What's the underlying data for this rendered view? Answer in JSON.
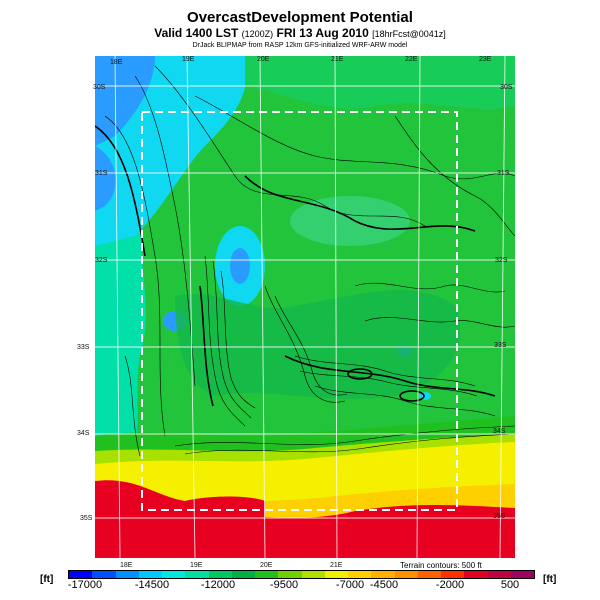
{
  "title": "OvercastDevelopment Potential",
  "subtitle_main": "Valid 1400 LST",
  "subtitle_small": "(1200Z)",
  "subtitle_date": "FRI 13 Aug 2010",
  "subtitle_fcst": "[18hrFcst@0041z]",
  "source_line": "DrJack BLIPMAP from RASP 12km GFS-initialized WRF-ARW model",
  "lon_labels_top": [
    "18E",
    "19E",
    "20E",
    "21E",
    "22E",
    "23E"
  ],
  "lon_labels_bottom": [
    "18E",
    "19E",
    "20E",
    "21E"
  ],
  "lat_labels_left": [
    "30S",
    "31S",
    "32S",
    "33S",
    "34S",
    "35S"
  ],
  "lat_labels_right": [
    "30S",
    "31S",
    "32S",
    "33S",
    "34S",
    "35S"
  ],
  "terrain_note": "Terrain contours: 500 ft",
  "unit_left": "[ft]",
  "unit_right": "[ft]",
  "colorbar": {
    "labels": [
      "-17000",
      "-14500",
      "-12000",
      "-9500",
      "-7000",
      "-4500",
      "-2000",
      "500"
    ],
    "colors": [
      "#0000ff",
      "#0050ff",
      "#0090ff",
      "#00c8ff",
      "#00e8e0",
      "#00e0a0",
      "#00c860",
      "#00b040",
      "#20c020",
      "#70d000",
      "#b0e000",
      "#f0f000",
      "#ffd000",
      "#ffb000",
      "#ff9000",
      "#ff6000",
      "#ff3000",
      "#e00020",
      "#c00040",
      "#a00060"
    ]
  },
  "legend_colors": {
    "sea": "#00e8a8",
    "land_green": "#22c43c",
    "light_blue": "#10d8f0",
    "blue": "#2a9cff",
    "yellow": "#f4f000",
    "orange": "#ffb400",
    "red": "#e80020"
  }
}
